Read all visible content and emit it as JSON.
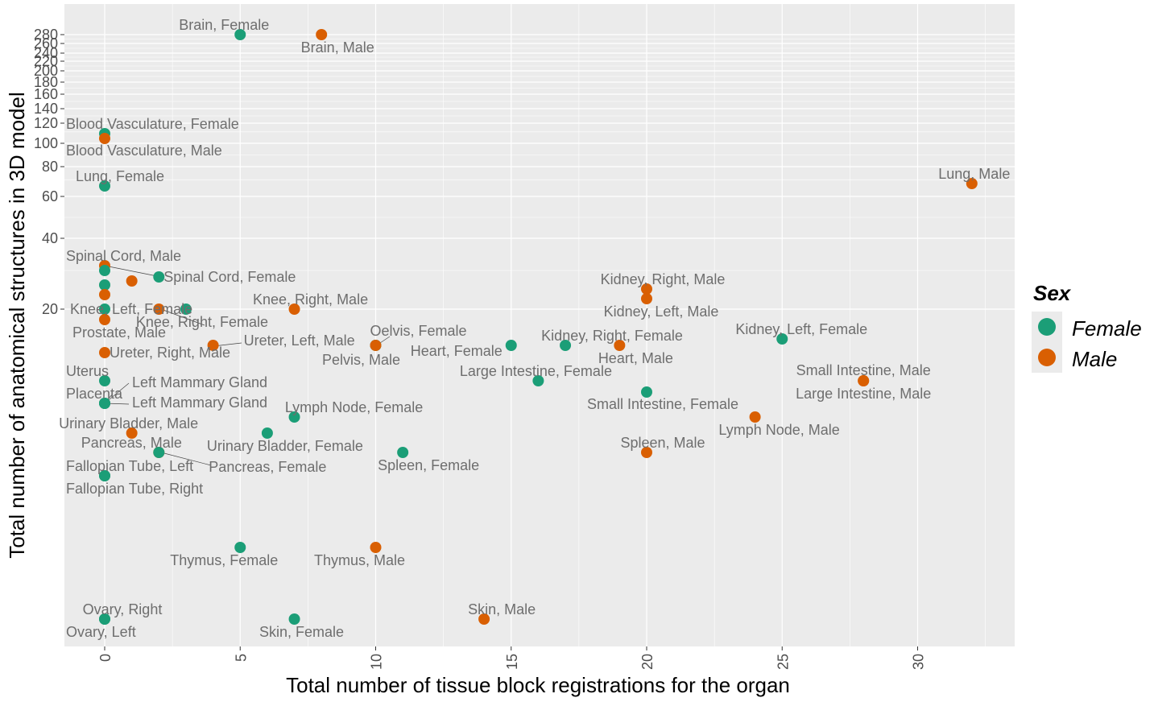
{
  "chart_data": {
    "type": "scatter",
    "xlabel": "Total number of tissue block registrations for the organ",
    "ylabel": "Total number of anatomical structures in 3D model",
    "xlim": [
      -1.5,
      33.5
    ],
    "x_ticks": [
      0,
      5,
      10,
      15,
      20,
      25,
      30
    ],
    "y_scale": "log",
    "y_ticks": [
      20,
      40,
      60,
      80,
      100,
      120,
      140,
      160,
      180,
      200,
      220,
      240,
      260,
      280
    ],
    "grid": true,
    "legend": {
      "title": "Sex",
      "placement": "right",
      "entries": [
        {
          "name": "Female",
          "color": "#1b9e77"
        },
        {
          "name": "Male",
          "color": "#d95f02"
        }
      ]
    },
    "colors": {
      "Female": "#1b9e77",
      "Male": "#d95f02",
      "panel": "#ebebeb",
      "grid": "#ffffff",
      "label": "#6e6e6e"
    },
    "points": [
      {
        "label": "Brain, Female",
        "sex": "Female",
        "x": 5,
        "y": 280
      },
      {
        "label": "Brain, Male",
        "sex": "Male",
        "x": 8,
        "y": 280
      },
      {
        "label": "Blood Vasculature, Female",
        "sex": "Female",
        "x": 0,
        "y": 108
      },
      {
        "label": "Blood Vasculature, Male",
        "sex": "Male",
        "x": 0,
        "y": 104
      },
      {
        "label": "Lung, Female",
        "sex": "Female",
        "x": 0,
        "y": 66
      },
      {
        "label": "Lung, Male",
        "sex": "Male",
        "x": 32,
        "y": 67
      },
      {
        "label": "Spinal Cord, Male",
        "sex": "Male",
        "x": 0,
        "y": 31
      },
      {
        "label": "Spinal Cord, Female",
        "sex": "Female",
        "x": 2,
        "y": 29
      },
      {
        "label": "",
        "sex": "Female",
        "x": 0,
        "y": 30
      },
      {
        "label": "",
        "sex": "Male",
        "x": 1,
        "y": 28
      },
      {
        "label": "",
        "sex": "Female",
        "x": 0,
        "y": 26
      },
      {
        "label": "",
        "sex": "Male",
        "x": 0,
        "y": 24
      },
      {
        "label": "Kidney, Right, Male",
        "sex": "Male",
        "x": 20,
        "y": 25
      },
      {
        "label": "Kidney, Left, Male",
        "sex": "Male",
        "x": 20,
        "y": 23
      },
      {
        "label": "Knee, Left, Female",
        "sex": "Female",
        "x": 0,
        "y": 20
      },
      {
        "label": "",
        "sex": "Male",
        "x": 2,
        "y": 20
      },
      {
        "label": "Knee, Right, Female",
        "sex": "Female",
        "x": 3,
        "y": 20
      },
      {
        "label": "Knee, Right, Male",
        "sex": "Male",
        "x": 7,
        "y": 20
      },
      {
        "label": "Prostate, Male",
        "sex": "Male",
        "x": 0,
        "y": 18
      },
      {
        "label": "Kidney, Left, Female",
        "sex": "Female",
        "x": 25,
        "y": 15
      },
      {
        "label": "Ureter, Left, Male",
        "sex": "Male",
        "x": 4,
        "y": 14
      },
      {
        "label": "Oelvis, Female",
        "sex": "Female",
        "x": 10,
        "y": 14
      },
      {
        "label": "Pelvis, Male",
        "sex": "Male",
        "x": 10,
        "y": 14
      },
      {
        "label": "Heart, Female",
        "sex": "Female",
        "x": 15,
        "y": 14
      },
      {
        "label": "Kidney, Right, Female",
        "sex": "Female",
        "x": 17,
        "y": 14
      },
      {
        "label": "Heart, Male",
        "sex": "Male",
        "x": 19,
        "y": 14
      },
      {
        "label": "Ureter, Right, Male",
        "sex": "Male",
        "x": 0,
        "y": 13
      },
      {
        "label": "Uterus",
        "sex": "Female",
        "x": 0,
        "y": 10
      },
      {
        "label": "Large Intestine, Female",
        "sex": "Female",
        "x": 16,
        "y": 10
      },
      {
        "label": "Small Intestine, Male",
        "sex": "Male",
        "x": 28,
        "y": 10
      },
      {
        "label": "Small Intestine, Female",
        "sex": "Female",
        "x": 20,
        "y": 9
      },
      {
        "label": "Large Intestine, Male",
        "sex": "Male",
        "x": 28,
        "y": 10
      },
      {
        "label": "Placenta",
        "sex": "Female",
        "x": 0,
        "y": 8
      },
      {
        "label": "Left Mammary Gland",
        "sex": "Female",
        "x": 0,
        "y": 8
      },
      {
        "label": "Left Mammary Gland",
        "sex": "Female",
        "x": 0,
        "y": 8
      },
      {
        "label": "Lymph Node, Female",
        "sex": "Female",
        "x": 7,
        "y": 7
      },
      {
        "label": "Lymph Node, Male",
        "sex": "Male",
        "x": 24,
        "y": 7
      },
      {
        "label": "Urinary Bladder, Male",
        "sex": "Male",
        "x": 1,
        "y": 6
      },
      {
        "label": "Urinary Bladder, Female",
        "sex": "Female",
        "x": 6,
        "y": 6
      },
      {
        "label": "Pancreas, Male",
        "sex": "Male",
        "x": 2,
        "y": 5
      },
      {
        "label": "Pancreas, Female",
        "sex": "Female",
        "x": 2,
        "y": 5
      },
      {
        "label": "Spleen, Female",
        "sex": "Female",
        "x": 11,
        "y": 5
      },
      {
        "label": "Spleen, Male",
        "sex": "Male",
        "x": 20,
        "y": 5
      },
      {
        "label": "Fallopian Tube, Left",
        "sex": "Female",
        "x": 0,
        "y": 4
      },
      {
        "label": "Fallopian Tube, Right",
        "sex": "Female",
        "x": 0,
        "y": 4
      },
      {
        "label": "Thymus, Female",
        "sex": "Female",
        "x": 5,
        "y": 2
      },
      {
        "label": "Thymus, Male",
        "sex": "Male",
        "x": 10,
        "y": 2
      },
      {
        "label": "Ovary, Right",
        "sex": "Female",
        "x": 0,
        "y": 1
      },
      {
        "label": "Ovary, Left",
        "sex": "Female",
        "x": 0,
        "y": 1
      },
      {
        "label": "Skin, Female",
        "sex": "Female",
        "x": 7,
        "y": 1
      },
      {
        "label": "Skin, Male",
        "sex": "Male",
        "x": 14,
        "y": 1
      }
    ]
  }
}
